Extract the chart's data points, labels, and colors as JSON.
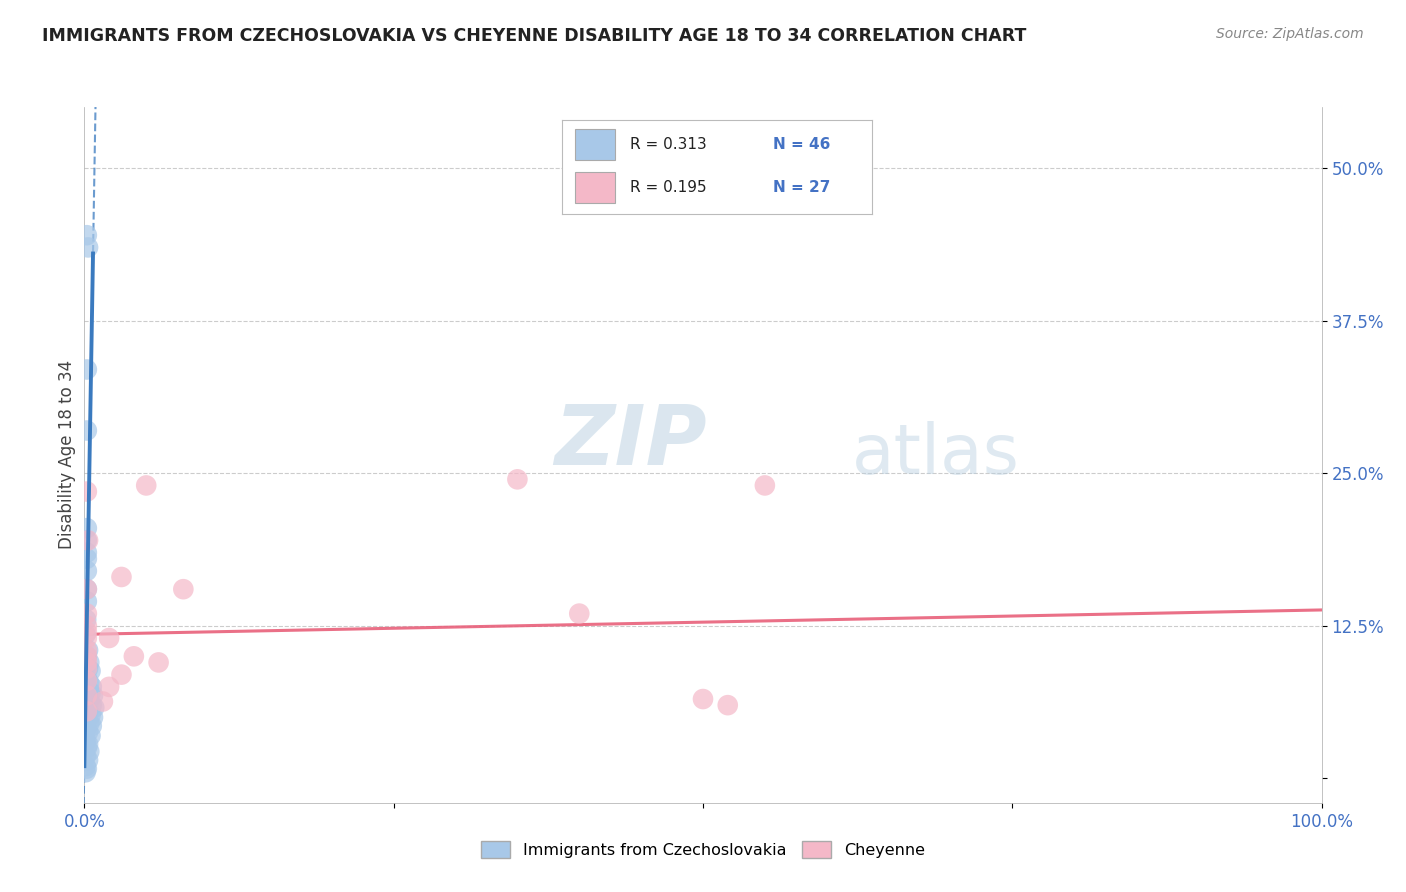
{
  "title": "IMMIGRANTS FROM CZECHOSLOVAKIA VS CHEYENNE DISABILITY AGE 18 TO 34 CORRELATION CHART",
  "source": "Source: ZipAtlas.com",
  "ylabel": "Disability Age 18 to 34",
  "watermark_zip": "ZIP",
  "watermark_atlas": "atlas",
  "blue_color": "#a8c8e8",
  "pink_color": "#f4b8c8",
  "blue_line_color": "#3a7abf",
  "pink_line_color": "#e8607a",
  "blue_label": "Immigrants from Czechoslovakia",
  "pink_label": "Cheyenne",
  "xlim": [
    0.0,
    1.0
  ],
  "ylim": [
    -0.02,
    0.55
  ],
  "blue_scatter": [
    [
      0.002,
      0.445
    ],
    [
      0.003,
      0.435
    ],
    [
      0.002,
      0.335
    ],
    [
      0.002,
      0.285
    ],
    [
      0.002,
      0.205
    ],
    [
      0.002,
      0.195
    ],
    [
      0.002,
      0.185
    ],
    [
      0.002,
      0.17
    ],
    [
      0.002,
      0.155
    ],
    [
      0.002,
      0.18
    ],
    [
      0.002,
      0.145
    ],
    [
      0.0015,
      0.13
    ],
    [
      0.001,
      0.118
    ],
    [
      0.003,
      0.105
    ],
    [
      0.002,
      0.1
    ],
    [
      0.004,
      0.095
    ],
    [
      0.003,
      0.09
    ],
    [
      0.005,
      0.088
    ],
    [
      0.002,
      0.082
    ],
    [
      0.004,
      0.078
    ],
    [
      0.006,
      0.075
    ],
    [
      0.003,
      0.073
    ],
    [
      0.005,
      0.07
    ],
    [
      0.007,
      0.068
    ],
    [
      0.002,
      0.065
    ],
    [
      0.004,
      0.063
    ],
    [
      0.006,
      0.06
    ],
    [
      0.008,
      0.058
    ],
    [
      0.003,
      0.055
    ],
    [
      0.005,
      0.052
    ],
    [
      0.007,
      0.05
    ],
    [
      0.002,
      0.048
    ],
    [
      0.004,
      0.045
    ],
    [
      0.006,
      0.043
    ],
    [
      0.001,
      0.04
    ],
    [
      0.003,
      0.038
    ],
    [
      0.005,
      0.035
    ],
    [
      0.001,
      0.03
    ],
    [
      0.003,
      0.028
    ],
    [
      0.002,
      0.025
    ],
    [
      0.004,
      0.022
    ],
    [
      0.001,
      0.018
    ],
    [
      0.003,
      0.015
    ],
    [
      0.001,
      0.01
    ],
    [
      0.002,
      0.008
    ],
    [
      0.001,
      0.005
    ]
  ],
  "pink_scatter": [
    [
      0.002,
      0.235
    ],
    [
      0.003,
      0.195
    ],
    [
      0.03,
      0.165
    ],
    [
      0.002,
      0.155
    ],
    [
      0.002,
      0.135
    ],
    [
      0.05,
      0.24
    ],
    [
      0.002,
      0.125
    ],
    [
      0.08,
      0.155
    ],
    [
      0.002,
      0.12
    ],
    [
      0.002,
      0.115
    ],
    [
      0.02,
      0.115
    ],
    [
      0.002,
      0.105
    ],
    [
      0.002,
      0.1
    ],
    [
      0.04,
      0.1
    ],
    [
      0.002,
      0.095
    ],
    [
      0.06,
      0.095
    ],
    [
      0.002,
      0.09
    ],
    [
      0.03,
      0.085
    ],
    [
      0.002,
      0.08
    ],
    [
      0.02,
      0.075
    ],
    [
      0.002,
      0.068
    ],
    [
      0.015,
      0.063
    ],
    [
      0.002,
      0.055
    ],
    [
      0.35,
      0.245
    ],
    [
      0.55,
      0.24
    ],
    [
      0.4,
      0.135
    ],
    [
      0.5,
      0.065
    ],
    [
      0.52,
      0.06
    ]
  ],
  "yticks": [
    0.0,
    0.125,
    0.25,
    0.375,
    0.5
  ],
  "ytick_labels": [
    "",
    "12.5%",
    "25.0%",
    "37.5%",
    "50.0%"
  ],
  "xtick_positions": [
    0.0,
    0.25,
    0.5,
    0.75,
    1.0
  ],
  "xtick_labels": [
    "0.0%",
    "",
    "",
    "",
    "100.0%"
  ]
}
